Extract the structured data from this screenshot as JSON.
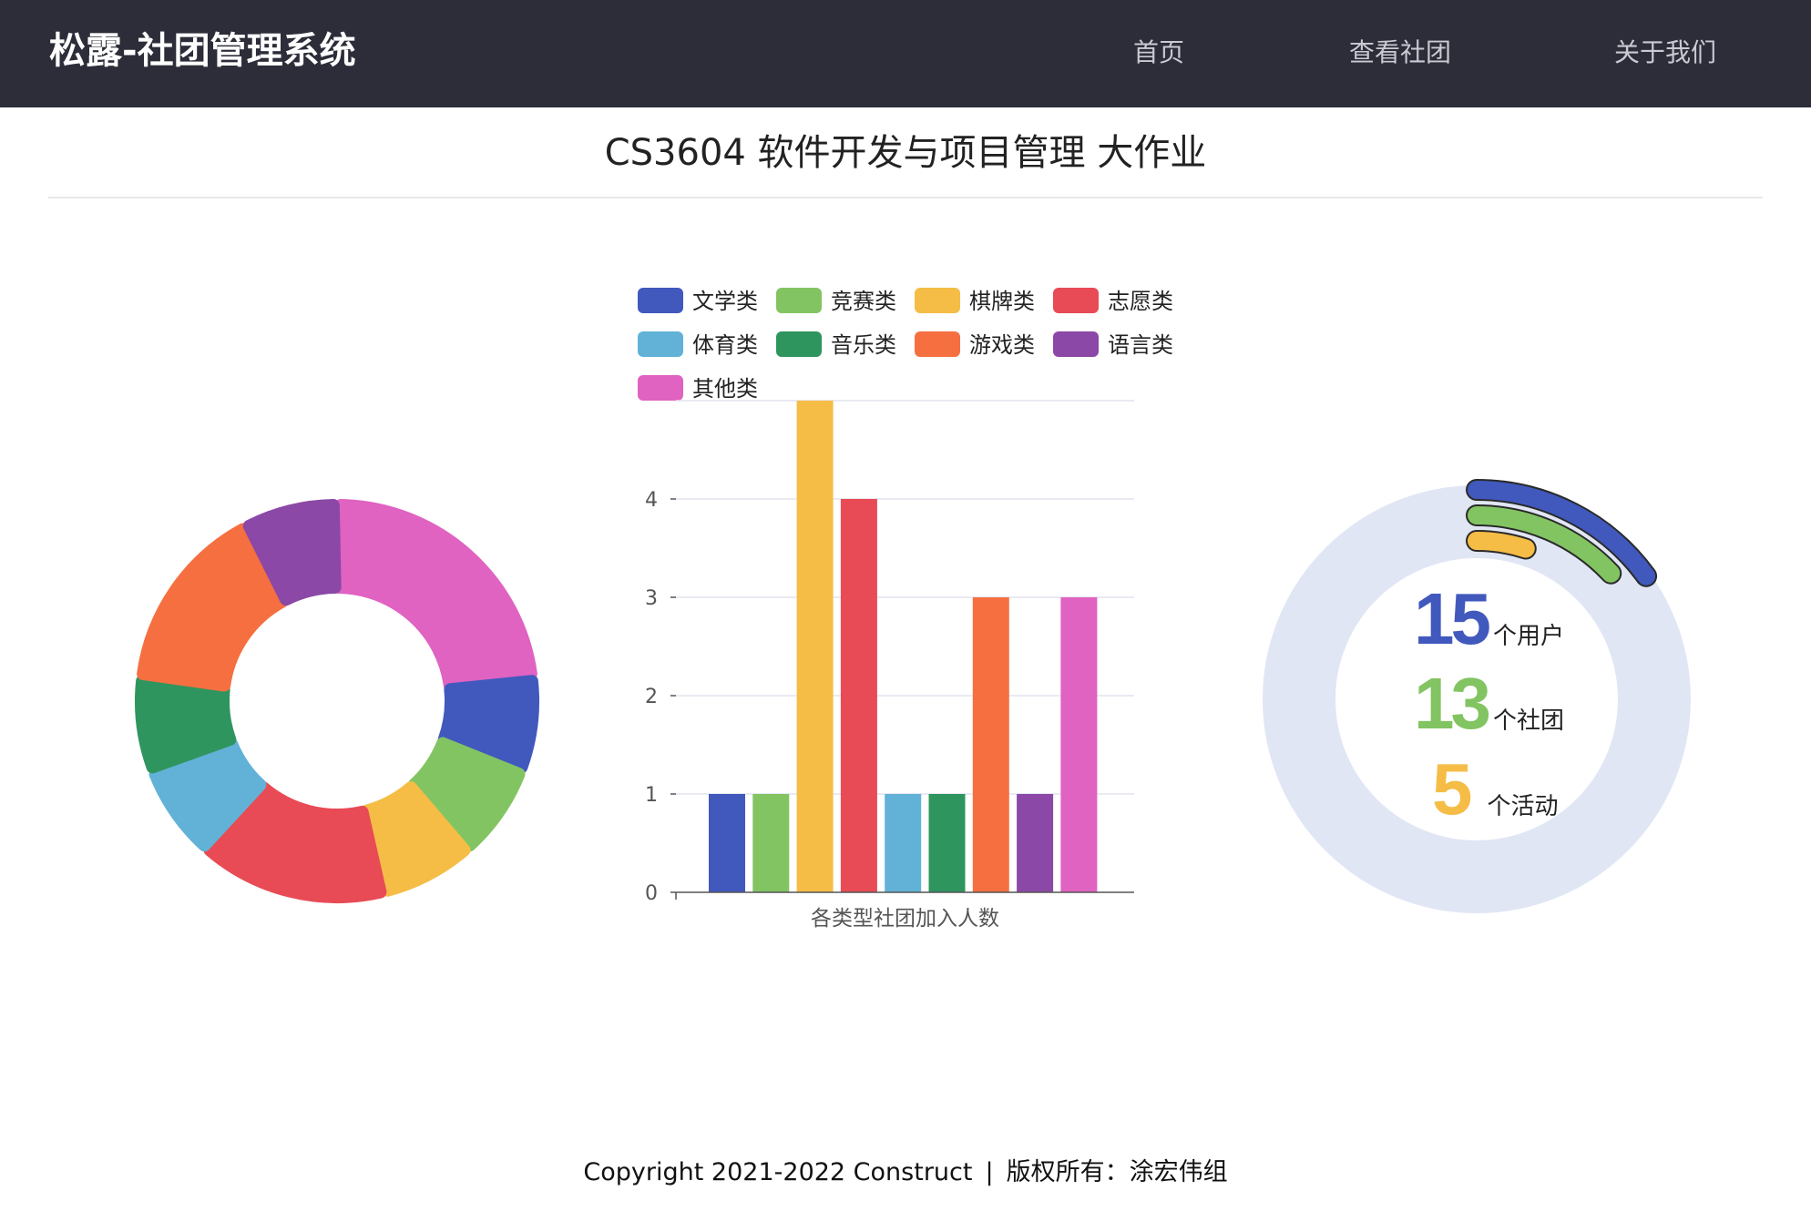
{
  "header": {
    "brand": "松露-社团管理系统",
    "nav": [
      {
        "label": "首页"
      },
      {
        "label": "查看社团"
      },
      {
        "label": "关于我们"
      }
    ]
  },
  "page_title": "CS3604 软件开发与项目管理 大作业",
  "chart_data": [
    {
      "type": "pie",
      "categories": [
        "其他类",
        "文学类",
        "竞赛类",
        "棋牌类",
        "志愿类",
        "体育类",
        "音乐类",
        "游戏类",
        "语言类"
      ],
      "values": [
        3,
        1,
        1,
        1,
        2,
        1,
        1,
        2,
        1
      ],
      "colors": [
        "#e062c1",
        "#4159bd",
        "#82c462",
        "#f5bd46",
        "#e84b55",
        "#62b2d8",
        "#2f955e",
        "#f66f40",
        "#8b48a6"
      ]
    },
    {
      "type": "bar",
      "categories": [
        "文学类",
        "竞赛类",
        "棋牌类",
        "志愿类",
        "体育类",
        "音乐类",
        "游戏类",
        "语言类",
        "其他类"
      ],
      "values": [
        1,
        1,
        5,
        4,
        1,
        1,
        3,
        1,
        3
      ],
      "colors": [
        "#4159bd",
        "#82c462",
        "#f5bd46",
        "#e84b55",
        "#62b2d8",
        "#2f955e",
        "#f66f40",
        "#8b48a6",
        "#e062c1"
      ],
      "legend": [
        "文学类",
        "竞赛类",
        "棋牌类",
        "志愿类",
        "体育类",
        "音乐类",
        "游戏类",
        "语言类",
        "其他类"
      ],
      "xlabel": "各类型社团加入人数",
      "ylabel": "",
      "ylim": [
        0,
        5
      ],
      "yticks": [
        "0",
        "1",
        "2",
        "3",
        "4"
      ],
      "grid": true,
      "legend_position": "top"
    },
    {
      "type": "gauge",
      "series": [
        {
          "value": 15,
          "label": "个用户",
          "color": "#4159bd"
        },
        {
          "value": 13,
          "label": "个社团",
          "color": "#82c462"
        },
        {
          "value": 5,
          "label": "个活动",
          "color": "#f5bd46"
        }
      ],
      "track_color": "#e1e6f5"
    }
  ],
  "footer": {
    "copyright": "Copyright 2021-2022 Construct",
    "separator": "|",
    "owner": "版权所有：涂宏伟组"
  }
}
